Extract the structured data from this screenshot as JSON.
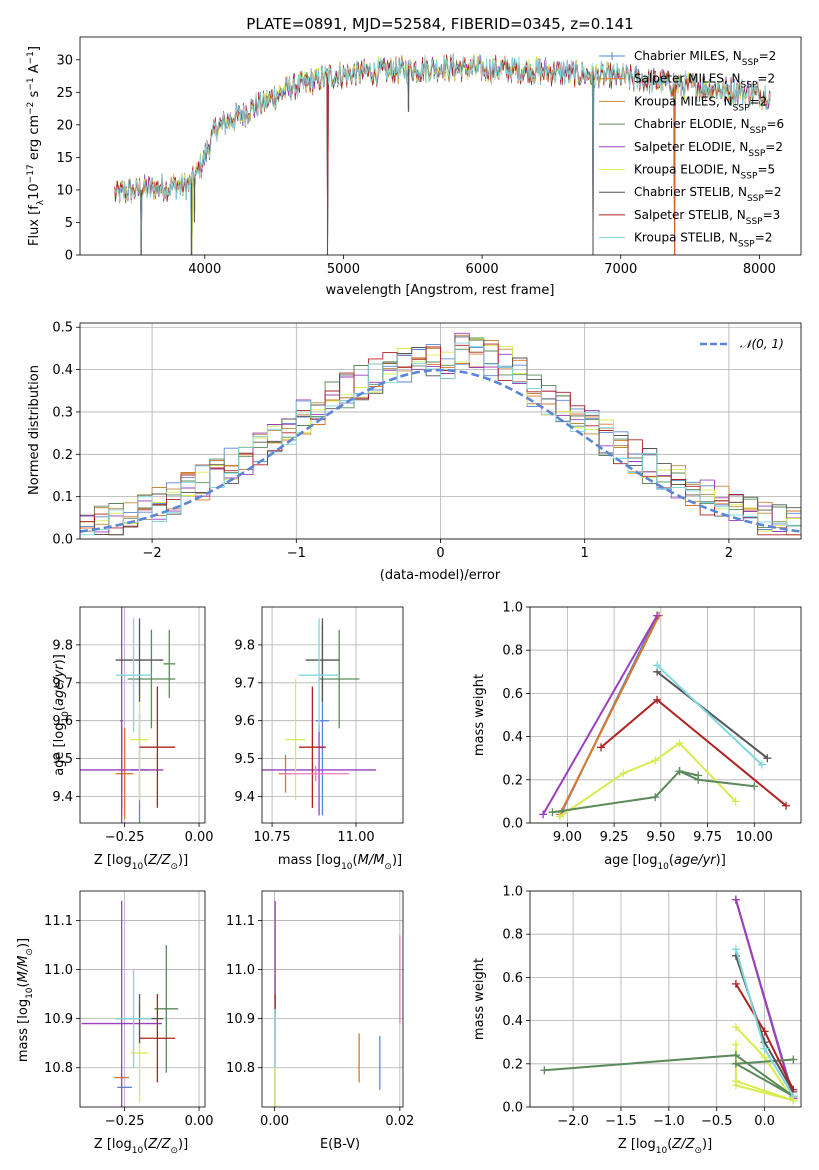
{
  "title": "PLATE=0891, MJD=52584, FIBERID=0345, z=0.141",
  "colors": {
    "Chabrier MILES": "#5b86d6",
    "Salpeter MILES": "#d9782b",
    "Kroupa MILES": "#c08a3e",
    "Chabrier ELODIE": "#5a8a5a",
    "Salpeter ELODIE": "#9b3fbf",
    "Kroupa ELODIE": "#d8ec50",
    "Chabrier STELIB": "#555555",
    "Salpeter STELIB": "#b02020",
    "Kroupa STELIB": "#7fd8de",
    "normal": "#5b86d6",
    "pink": "#f07ac0"
  },
  "chart_data": [
    {
      "id": "spectrum",
      "type": "line",
      "title": "PLATE=0891, MJD=52584, FIBERID=0345, z=0.141",
      "xlabel": "wavelength [Angstrom, rest frame]",
      "ylabel_parts": [
        "Flux [f",
        "λ",
        "10",
        "−17",
        " erg cm",
        "−2",
        " s",
        "−1",
        " A",
        "−1",
        "]"
      ],
      "xlim": [
        3100,
        8300
      ],
      "ylim": [
        0,
        33.5
      ],
      "xticks": [
        4000,
        5000,
        6000,
        7000,
        8000
      ],
      "yticks": [
        0,
        5,
        10,
        15,
        20,
        25,
        30
      ],
      "grid": false,
      "x_range": [
        3350,
        8080
      ],
      "continuum": [
        [
          3350,
          9.5
        ],
        [
          3600,
          10.2
        ],
        [
          3900,
          10.8
        ],
        [
          3990,
          14.5
        ],
        [
          4080,
          19.5
        ],
        [
          4300,
          22
        ],
        [
          4600,
          25.5
        ],
        [
          4900,
          27.5
        ],
        [
          5300,
          28.3
        ],
        [
          5700,
          28.8
        ],
        [
          6100,
          28.6
        ],
        [
          6500,
          28.2
        ],
        [
          7000,
          27.3
        ],
        [
          7500,
          26
        ],
        [
          8080,
          24.5
        ]
      ],
      "dips": [
        [
          3540,
          0
        ],
        [
          3905,
          0
        ],
        [
          3925,
          5
        ],
        [
          4885,
          0
        ],
        [
          6800,
          0
        ],
        [
          7390,
          0
        ],
        [
          5470,
          22
        ]
      ],
      "legend": [
        {
          "label": "Chabrier MILES",
          "nssp": "2"
        },
        {
          "label": "Salpeter MILES",
          "nssp": "2"
        },
        {
          "label": "Kroupa MILES",
          "nssp": "2"
        },
        {
          "label": "Chabrier ELODIE",
          "nssp": "6"
        },
        {
          "label": "Salpeter ELODIE",
          "nssp": "2"
        },
        {
          "label": "Kroupa ELODIE",
          "nssp": "5"
        },
        {
          "label": "Chabrier STELIB",
          "nssp": "2"
        },
        {
          "label": "Salpeter STELIB",
          "nssp": "3"
        },
        {
          "label": "Kroupa STELIB",
          "nssp": "2"
        }
      ],
      "legend_sub": "SSP",
      "legend_prefix": "N",
      "legend_placement": "upper-right"
    },
    {
      "id": "residuals",
      "type": "histogram",
      "xlabel": "(data-model)/error",
      "ylabel": "Normed distribution",
      "xlim": [
        -2.5,
        2.5
      ],
      "ylim": [
        0,
        0.51
      ],
      "xticks": [
        -2,
        -1,
        0,
        1,
        2
      ],
      "yticks": [
        0.0,
        0.1,
        0.2,
        0.3,
        0.4,
        0.5
      ],
      "grid": true,
      "bin_width": 0.1,
      "legend": "𝒩(0, 1)",
      "legend_placement": "upper-right"
    },
    {
      "id": "age-vs-Z",
      "type": "scatter",
      "xlabel": "Z [log10(Z/Z⊙)]",
      "ylabel": "age [log10(age/yr)]",
      "xlim": [
        -0.4,
        0.02
      ],
      "ylim": [
        9.33,
        9.9
      ],
      "xticks": [
        -0.25,
        0.0
      ],
      "yticks": [
        9.4,
        9.5,
        9.6,
        9.7,
        9.8
      ],
      "grid": true,
      "errorbars": [
        {
          "model": "Chabrier MILES",
          "x": -0.2,
          "xerr": 0.03,
          "y": 9.47,
          "yerr": 0.15
        },
        {
          "model": "Salpeter MILES",
          "x": -0.25,
          "xerr": 0.03,
          "y": 9.46,
          "yerr": 0.12
        },
        {
          "model": "Kroupa MILES",
          "x": -0.26,
          "xerr": 0.01,
          "y": 9.47,
          "yerr": 0.1
        },
        {
          "model": "Chabrier ELODIE",
          "x": -0.16,
          "xerr": 0.08,
          "y": 9.71,
          "yerr": 0.13
        },
        {
          "model": "Salpeter ELODIE",
          "x": -0.26,
          "xerr": 0.14,
          "y": 9.47,
          "yerr": 0.12
        },
        {
          "model": "Salpeter ELODIE",
          "x": -0.26,
          "xerr": 0.005,
          "y": 9.6,
          "yerr": 0.3
        },
        {
          "model": "Kroupa ELODIE",
          "x": -0.2,
          "xerr": 0.03,
          "y": 9.55,
          "yerr": 0.16
        },
        {
          "model": "Chabrier STELIB",
          "x": -0.2,
          "xerr": 0.08,
          "y": 9.76,
          "yerr": 0.11
        },
        {
          "model": "Salpeter STELIB",
          "x": -0.14,
          "xerr": 0.06,
          "y": 9.53,
          "yerr": 0.16
        },
        {
          "model": "Kroupa STELIB",
          "x": -0.22,
          "xerr": 0.06,
          "y": 9.72,
          "yerr": 0.15
        },
        {
          "model": "Chabrier ELODIE",
          "x": -0.1,
          "xerr": 0.02,
          "y": 9.75,
          "yerr": 0.09
        }
      ]
    },
    {
      "id": "age-vs-mass",
      "type": "scatter",
      "xlabel": "mass [log10(M/M⊙)]",
      "xlim": [
        10.72,
        11.14
      ],
      "ylim": [
        9.33,
        9.9
      ],
      "xticks": [
        10.75,
        11.0
      ],
      "yticks": [
        9.4,
        9.5,
        9.6,
        9.7,
        9.8
      ],
      "grid": true,
      "errorbars": [
        {
          "model": "Chabrier MILES",
          "x": 10.9,
          "xerr": 0.02,
          "y": 9.6,
          "yerr": 0.25
        },
        {
          "model": "Salpeter MILES",
          "x": 10.79,
          "xerr": 0.02,
          "y": 9.46,
          "yerr": 0.05
        },
        {
          "model": "Chabrier ELODIE",
          "x": 10.95,
          "xerr": 0.06,
          "y": 9.71,
          "yerr": 0.13
        },
        {
          "model": "Salpeter ELODIE",
          "x": 10.89,
          "xerr": 0.17,
          "y": 9.47,
          "yerr": 0.12
        },
        {
          "model": "Kroupa ELODIE",
          "x": 10.82,
          "xerr": 0.03,
          "y": 9.55,
          "yerr": 0.16
        },
        {
          "model": "Chabrier STELIB",
          "x": 10.9,
          "xerr": 0.05,
          "y": 9.76,
          "yerr": 0.11
        },
        {
          "model": "Salpeter STELIB",
          "x": 10.87,
          "xerr": 0.04,
          "y": 9.53,
          "yerr": 0.16
        },
        {
          "model": "Kroupa STELIB",
          "x": 10.89,
          "xerr": 0.06,
          "y": 9.72,
          "yerr": 0.15
        },
        {
          "model": "pink",
          "x": 10.88,
          "xerr": 0.1,
          "y": 9.46,
          "yerr": 0.02
        }
      ]
    },
    {
      "id": "weight-vs-age",
      "type": "line",
      "xlabel": "age [log10(age/yr)]",
      "ylabel": "mass weight",
      "xlim": [
        8.8,
        10.25
      ],
      "ylim": [
        0,
        1.0
      ],
      "xticks": [
        9.0,
        9.25,
        9.5,
        9.75,
        10.0
      ],
      "yticks": [
        0.0,
        0.2,
        0.4,
        0.6,
        0.8,
        1.0
      ],
      "grid": true,
      "series": [
        {
          "model": "Chabrier MILES",
          "x": [
            8.97,
            9.48
          ],
          "y": [
            0.05,
            0.96
          ]
        },
        {
          "model": "Salpeter MILES",
          "x": [
            8.96,
            9.49
          ],
          "y": [
            0.04,
            0.96
          ]
        },
        {
          "model": "Kroupa ELODIE",
          "x": [
            8.96,
            9.3,
            9.47,
            9.6,
            9.9
          ],
          "y": [
            0.03,
            0.23,
            0.29,
            0.37,
            0.1
          ]
        },
        {
          "model": "Salpeter ELODIE",
          "x": [
            8.87,
            9.48
          ],
          "y": [
            0.04,
            0.96
          ]
        },
        {
          "model": "Chabrier ELODIE",
          "x": [
            8.92,
            9.47,
            9.6,
            9.7,
            10.0
          ],
          "y": [
            0.05,
            0.12,
            0.24,
            0.2,
            0.17
          ]
        },
        {
          "model": "Chabrier STELIB",
          "x": [
            9.48,
            10.07
          ],
          "y": [
            0.7,
            0.3
          ]
        },
        {
          "model": "Salpeter STELIB",
          "x": [
            9.18,
            9.48,
            10.17
          ],
          "y": [
            0.35,
            0.57,
            0.08
          ]
        },
        {
          "model": "Kroupa STELIB",
          "x": [
            9.48,
            10.04
          ],
          "y": [
            0.73,
            0.27
          ]
        },
        {
          "model": "Chabrier ELODIE",
          "x": [
            9.6,
            9.7
          ],
          "y": [
            0.24,
            0.22
          ]
        }
      ]
    },
    {
      "id": "mass-vs-Z",
      "type": "scatter",
      "xlabel": "Z [log10(Z/Z⊙)]",
      "ylabel": "mass [log10(M/M⊙)]",
      "xlim": [
        -0.4,
        0.02
      ],
      "ylim": [
        10.72,
        11.16
      ],
      "xticks": [
        -0.25,
        0.0
      ],
      "yticks": [
        10.8,
        10.9,
        11.0,
        11.1
      ],
      "grid": true,
      "errorbars": [
        {
          "model": "Chabrier MILES",
          "x": -0.25,
          "xerr": 0.025,
          "y": 10.76,
          "yerr": 0.0
        },
        {
          "model": "Salpeter MILES",
          "x": -0.26,
          "xerr": 0.025,
          "y": 10.78,
          "yerr": 0.0
        },
        {
          "model": "Chabrier ELODIE",
          "x": -0.11,
          "xerr": 0.04,
          "y": 10.92,
          "yerr": 0.13
        },
        {
          "model": "Salpeter ELODIE",
          "x": -0.26,
          "xerr": 0.135,
          "y": 10.89,
          "yerr": 0.25
        },
        {
          "model": "Kroupa ELODIE",
          "x": -0.2,
          "xerr": 0.03,
          "y": 10.83,
          "yerr": 0.1
        },
        {
          "model": "Chabrier STELIB",
          "x": -0.2,
          "xerr": 0.08,
          "y": 10.9,
          "yerr": 0.05
        },
        {
          "model": "Salpeter STELIB",
          "x": -0.14,
          "xerr": 0.06,
          "y": 10.86,
          "yerr": 0.09
        },
        {
          "model": "Kroupa STELIB",
          "x": -0.22,
          "xerr": 0.06,
          "y": 10.9,
          "yerr": 0.1
        }
      ]
    },
    {
      "id": "mass-vs-ebv",
      "type": "scatter",
      "xlabel": "E(B-V)",
      "xlim": [
        -0.002,
        0.0205
      ],
      "ylim": [
        10.72,
        11.16
      ],
      "xticks": [
        0.0,
        0.02
      ],
      "yticks": [
        10.8,
        10.9,
        11.0,
        11.1
      ],
      "grid": true,
      "errorbars": [
        {
          "model": "Chabrier MILES",
          "x": 0.0168,
          "xerr": 0.0,
          "y": 10.81,
          "yerr": 0.055
        },
        {
          "model": "Salpeter MILES",
          "x": 0.0135,
          "xerr": 0.0,
          "y": 10.82,
          "yerr": 0.05
        },
        {
          "model": "Salpeter ELODIE",
          "x": 0.0001,
          "xerr": 0.0,
          "y": 11.0,
          "yerr": 0.14
        },
        {
          "model": "Kroupa ELODIE",
          "x": 0.0001,
          "xerr": 0.0,
          "y": 10.82,
          "yerr": 0.1
        },
        {
          "model": "Salpeter STELIB",
          "x": 0.0001,
          "xerr": 0.0,
          "y": 10.93,
          "yerr": 0.02
        },
        {
          "model": "Kroupa STELIB",
          "x": 0.0001,
          "xerr": 0.0,
          "y": 10.86,
          "yerr": 0.06
        },
        {
          "model": "pink",
          "x": 0.02,
          "xerr": 0.0,
          "y": 10.98,
          "yerr": 0.09
        }
      ]
    },
    {
      "id": "weight-vs-Z",
      "type": "line",
      "xlabel": "Z [log10(Z/Z⊙)]",
      "ylabel": "mass weight",
      "xlim": [
        -2.45,
        0.38
      ],
      "ylim": [
        0,
        1.0
      ],
      "xticks": [
        -2.0,
        -1.5,
        -1.0,
        -0.5,
        0.0
      ],
      "yticks": [
        0.0,
        0.2,
        0.4,
        0.6,
        0.8,
        1.0
      ],
      "grid": true,
      "series": [
        {
          "model": "Chabrier MILES",
          "x": [
            -0.3,
            0.3
          ],
          "y": [
            0.96,
            0.05
          ]
        },
        {
          "model": "Salpeter MILES",
          "x": [
            -0.3,
            0.3
          ],
          "y": [
            0.96,
            0.04
          ]
        },
        {
          "model": "Salpeter ELODIE",
          "x": [
            -0.3,
            0.3
          ],
          "y": [
            0.96,
            0.04
          ]
        },
        {
          "model": "Kroupa ELODIE",
          "x": [
            -0.3,
            0.0,
            0.3,
            -0.3,
            -0.3
          ],
          "y": [
            0.37,
            0.23,
            0.03,
            0.1,
            0.29
          ]
        },
        {
          "model": "Chabrier ELODIE",
          "x": [
            -2.3,
            -0.3,
            0.3,
            -0.3,
            0.3
          ],
          "y": [
            0.17,
            0.24,
            0.05,
            0.2,
            0.22
          ]
        },
        {
          "model": "Chabrier STELIB",
          "x": [
            -0.3,
            0.0,
            0.3
          ],
          "y": [
            0.7,
            0.3,
            0.07
          ]
        },
        {
          "model": "Salpeter STELIB",
          "x": [
            -0.3,
            0.0,
            0.3
          ],
          "y": [
            0.57,
            0.35,
            0.08
          ]
        },
        {
          "model": "Kroupa STELIB",
          "x": [
            -0.3,
            0.0,
            0.3
          ],
          "y": [
            0.73,
            0.27,
            0.05
          ]
        },
        {
          "model": "Kroupa ELODIE",
          "x": [
            -0.3,
            0.3
          ],
          "y": [
            0.12,
            0.03
          ]
        }
      ]
    }
  ]
}
